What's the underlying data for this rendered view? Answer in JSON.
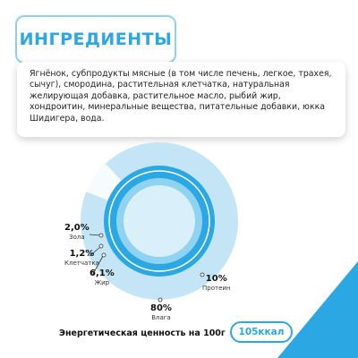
{
  "title": "ИНГРЕДИЕНТЫ",
  "ingredients": "Ягнёнок, субпродукты мясные (в том числе печень, легкое, трахея, сычуг), смородина, растительная клетчатка, натуральная желирующая добавка, растительное масло, рыбий жир, хондроитин, минеральные вещества, питательные добавки, юкка Шидигера, вода.",
  "composition": {
    "ash": {
      "value": "2,0%",
      "name": "Зола"
    },
    "fiber": {
      "value": "1,2%",
      "name": "Клетчатка"
    },
    "fat": {
      "value": "6,1%",
      "name": "Жир"
    },
    "protein": {
      "value": "10%",
      "name": "Протеин"
    },
    "moisture": {
      "value": "80%",
      "name": "Влага"
    }
  },
  "chart_data": {
    "type": "pie",
    "categories": [
      "Влага",
      "Протеин",
      "Жир",
      "Клетчатка",
      "Зола"
    ],
    "values": [
      80,
      10,
      6.1,
      1.2,
      2.0
    ]
  },
  "energy": {
    "label": "Энергетическая ценность на 100г",
    "value": "105ккал"
  },
  "colors": {
    "accent": "#2ba7e3",
    "light_ring": "#bfe4f4",
    "mid_ring": "#8ccfee",
    "inner": "#d7eef9"
  }
}
